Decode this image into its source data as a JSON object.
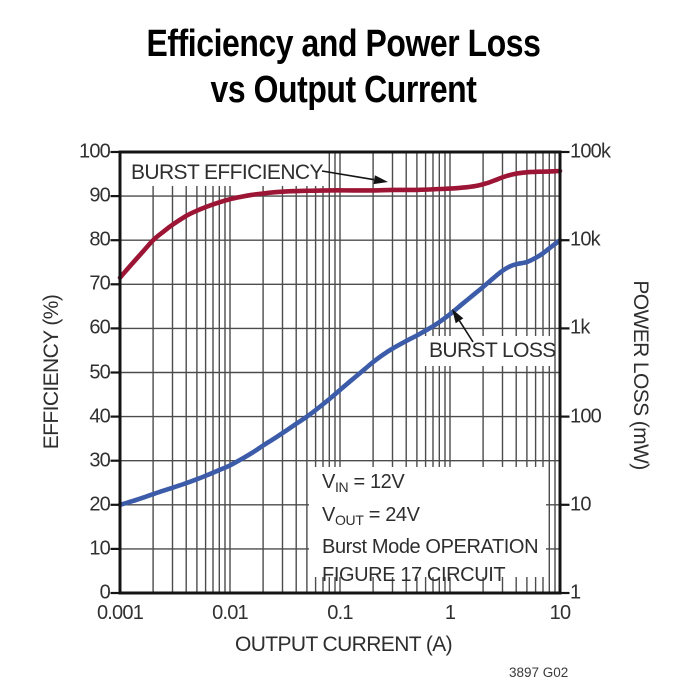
{
  "title": {
    "line1": "Efficiency and Power Loss",
    "line2": "vs Output Current"
  },
  "figure_ref": "3897 G02",
  "annotations": {
    "efficiency_label": "BURST EFFICIENCY",
    "loss_label": "BURST LOSS",
    "note": {
      "vin": {
        "base": "V",
        "sub": "IN",
        "rest": " = 12V"
      },
      "vout": {
        "base": "V",
        "sub": "OUT",
        "rest": " = 24V"
      },
      "line3": "Burst Mode OPERATION",
      "line4": "FIGURE 17 CIRCUIT"
    }
  },
  "chart_data": {
    "type": "line",
    "title": "Efficiency and Power Loss vs Output Current",
    "grid": true,
    "x_axis": {
      "label": "OUTPUT CURRENT (A)",
      "scale": "log",
      "min": 0.001,
      "max": 10,
      "tick_values": [
        0.001,
        0.01,
        0.1,
        1,
        10
      ],
      "tick_labels": [
        "0.001",
        "0.01",
        "0.1",
        "1",
        "10"
      ],
      "minor_gridlines": true
    },
    "y_axis_left": {
      "label": "EFFICIENCY (%)",
      "scale": "linear",
      "min": 0,
      "max": 100,
      "tick_values": [
        0,
        10,
        20,
        30,
        40,
        50,
        60,
        70,
        80,
        90,
        100
      ],
      "tick_labels": [
        "0",
        "10",
        "20",
        "30",
        "40",
        "50",
        "60",
        "70",
        "80",
        "90",
        "100"
      ]
    },
    "y_axis_right": {
      "label": "POWER LOSS (mW)",
      "scale": "log",
      "min": 1,
      "max": 100000,
      "tick_values": [
        1,
        10,
        100,
        1000,
        10000,
        100000
      ],
      "tick_labels": [
        "1",
        "10",
        "100",
        "1k",
        "10k",
        "100k"
      ]
    },
    "colors": {
      "efficiency": "#9d1535",
      "loss": "#3c5caa",
      "grid": "#4c4c4c",
      "axis": "#141414"
    },
    "series": [
      {
        "name": "BURST EFFICIENCY",
        "axis": "left",
        "unit": "%",
        "color_key": "efficiency",
        "points": [
          [
            0.001,
            71.5
          ],
          [
            0.00125,
            74.3
          ],
          [
            0.0016,
            77.3
          ],
          [
            0.002,
            80.0
          ],
          [
            0.0025,
            82.0
          ],
          [
            0.003,
            83.5
          ],
          [
            0.004,
            85.5
          ],
          [
            0.005,
            86.7
          ],
          [
            0.006,
            87.5
          ],
          [
            0.008,
            88.6
          ],
          [
            0.01,
            89.3
          ],
          [
            0.013,
            89.9
          ],
          [
            0.016,
            90.3
          ],
          [
            0.02,
            90.6
          ],
          [
            0.03,
            91.0
          ],
          [
            0.05,
            91.2
          ],
          [
            0.08,
            91.3
          ],
          [
            0.13,
            91.3
          ],
          [
            0.2,
            91.3
          ],
          [
            0.3,
            91.4
          ],
          [
            0.5,
            91.4
          ],
          [
            0.8,
            91.6
          ],
          [
            1,
            91.7
          ],
          [
            1.4,
            92.0
          ],
          [
            1.8,
            92.4
          ],
          [
            2.2,
            93.0
          ],
          [
            2.7,
            93.8
          ],
          [
            3.2,
            94.5
          ],
          [
            4,
            95.1
          ],
          [
            5,
            95.4
          ],
          [
            6,
            95.5
          ],
          [
            8,
            95.6
          ],
          [
            10,
            95.7
          ]
        ]
      },
      {
        "name": "BURST LOSS",
        "axis": "right",
        "unit": "mW",
        "color_key": "loss",
        "points": [
          [
            0.001,
            10
          ],
          [
            0.0013,
            11
          ],
          [
            0.0017,
            12.3
          ],
          [
            0.002,
            13.2
          ],
          [
            0.0025,
            14.5
          ],
          [
            0.003,
            15.6
          ],
          [
            0.004,
            17.6
          ],
          [
            0.005,
            19.5
          ],
          [
            0.006,
            21.3
          ],
          [
            0.008,
            24.8
          ],
          [
            0.01,
            28
          ],
          [
            0.013,
            33.5
          ],
          [
            0.017,
            41
          ],
          [
            0.02,
            47
          ],
          [
            0.025,
            56
          ],
          [
            0.03,
            65
          ],
          [
            0.04,
            83
          ],
          [
            0.05,
            100
          ],
          [
            0.065,
            128
          ],
          [
            0.08,
            158
          ],
          [
            0.1,
            200
          ],
          [
            0.13,
            265
          ],
          [
            0.17,
            350
          ],
          [
            0.2,
            415
          ],
          [
            0.25,
            510
          ],
          [
            0.3,
            590
          ],
          [
            0.4,
            720
          ],
          [
            0.5,
            830
          ],
          [
            0.65,
            1000
          ],
          [
            0.8,
            1180
          ],
          [
            1,
            1450
          ],
          [
            1.3,
            1900
          ],
          [
            1.7,
            2500
          ],
          [
            2,
            2950
          ],
          [
            2.5,
            3750
          ],
          [
            3,
            4500
          ],
          [
            3.5,
            5050
          ],
          [
            4,
            5350
          ],
          [
            4.5,
            5500
          ],
          [
            5,
            5650
          ],
          [
            6,
            6300
          ],
          [
            7,
            7100
          ],
          [
            8,
            8100
          ],
          [
            10,
            10000
          ]
        ]
      }
    ]
  }
}
